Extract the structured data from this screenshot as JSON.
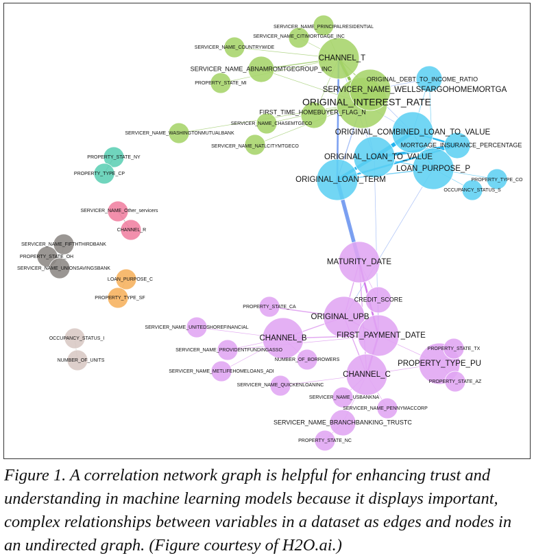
{
  "caption": "Figure 1. A correlation network graph is helpful for enhancing trust and understanding in machine learning models because it displays important, complex relationships between variables in a dataset as edges and nodes in an undirected graph. (Figure courtesy of H2O.ai.)",
  "colors": {
    "green": "#a6d46a",
    "green_edge": "#7fba3c",
    "blue": "#5fd0f3",
    "blue_edge": "#1fb2ee",
    "purple": "#e0a5f3",
    "purple_edge": "#cf6fe8",
    "teal": "#5ccfb4",
    "pink": "#f07fa1",
    "gray": "#8c8884",
    "orange": "#f6b05c",
    "tan": "#d8c8c4",
    "bridge": "#6f97f0"
  },
  "nodes": [
    {
      "id": "n1",
      "label": "SERVICER_NAME_PRINCIPALRESIDENTIAL",
      "group": "green",
      "size": 1
    },
    {
      "id": "n2",
      "label": "SERVICER_NAME_CITIMORTGAGE_INC",
      "group": "green",
      "size": 1
    },
    {
      "id": "n3",
      "label": "SERVICER_NAME_COUNTRYWIDE",
      "group": "green",
      "size": 1
    },
    {
      "id": "n4",
      "label": "CHANNEL_T",
      "group": "green",
      "size": 3
    },
    {
      "id": "n5",
      "label": "SERVICER_NAME_ABNAMROMTGEGROUP_INC",
      "group": "green",
      "size": 2
    },
    {
      "id": "n6",
      "label": "PROPERTY_STATE_MI",
      "group": "green",
      "size": 1
    },
    {
      "id": "n7",
      "label": "ORIGINAL_DEBT_TO_INCOME_RATIO",
      "group": "blue",
      "size": 2
    },
    {
      "id": "n8",
      "label": "SERVICER_NAME_WELLSFARGOHOMEMORTGA",
      "group": "green",
      "size": 3
    },
    {
      "id": "n9",
      "label": "ORIGINAL_INTEREST_RATE",
      "group": "green",
      "size": 4
    },
    {
      "id": "n10",
      "label": "FIRST_TIME_HOMEBUYER_FLAG_N",
      "group": "green",
      "size": 2
    },
    {
      "id": "n11",
      "label": "SERVICER_NAME_CHASEMTGECO",
      "group": "green",
      "size": 1
    },
    {
      "id": "n12",
      "label": "SERVICER_NAME_WASHINGTONMUTUALBANK",
      "group": "green",
      "size": 1
    },
    {
      "id": "n13",
      "label": "SERVICER_NAME_NATLCITYMTGECO",
      "group": "green",
      "size": 1
    },
    {
      "id": "n14",
      "label": "ORIGINAL_COMBINED_LOAN_TO_VALUE",
      "group": "blue",
      "size": 3
    },
    {
      "id": "n15",
      "label": "MORTGAGE_INSURANCE_PERCENTAGE",
      "group": "blue",
      "size": 2
    },
    {
      "id": "n16",
      "label": "ORIGINAL_LOAN_TO_VALUE",
      "group": "blue",
      "size": 3
    },
    {
      "id": "n17",
      "label": "LOAN_PURPOSE_P",
      "group": "blue",
      "size": 3
    },
    {
      "id": "n18",
      "label": "ORIGINAL_LOAN_TERM",
      "group": "blue",
      "size": 3
    },
    {
      "id": "n19",
      "label": "PROPERTY_TYPE_CO",
      "group": "blue",
      "size": 1
    },
    {
      "id": "n20",
      "label": "OCCUPANCY_STATUS_S",
      "group": "blue",
      "size": 1
    },
    {
      "id": "n21",
      "label": "PROPERTY_STATE_NY",
      "group": "teal",
      "size": 1
    },
    {
      "id": "n22",
      "label": "PROPERTY_TYPE_CP",
      "group": "teal",
      "size": 1
    },
    {
      "id": "n23",
      "label": "SERVICER_NAME_Other_servicers",
      "group": "pink",
      "size": 1
    },
    {
      "id": "n24",
      "label": "CHANNEL_R",
      "group": "pink",
      "size": 1
    },
    {
      "id": "n25",
      "label": "SERVICER_NAME_FIFTHTHIRDBANK",
      "group": "gray",
      "size": 1
    },
    {
      "id": "n26",
      "label": "PROPERTY_STATE_OH",
      "group": "gray",
      "size": 1
    },
    {
      "id": "n27",
      "label": "SERVICER_NAME_UNIONSAVINGSBANK",
      "group": "gray",
      "size": 1
    },
    {
      "id": "n28",
      "label": "LOAN_PURPOSE_C",
      "group": "orange",
      "size": 1
    },
    {
      "id": "n29",
      "label": "PROPERTY_TYPE_SF",
      "group": "orange",
      "size": 1
    },
    {
      "id": "n30",
      "label": "OCCUPANCY_STATUS_I",
      "group": "tan",
      "size": 1
    },
    {
      "id": "n31",
      "label": "NUMBER_OF_UNITS",
      "group": "tan",
      "size": 1
    },
    {
      "id": "n32",
      "label": "MATURITY_DATE",
      "group": "purple",
      "size": 3
    },
    {
      "id": "n33",
      "label": "CREDIT_SCORE",
      "group": "purple",
      "size": 2
    },
    {
      "id": "n34",
      "label": "PROPERTY_STATE_CA",
      "group": "purple",
      "size": 1
    },
    {
      "id": "n35",
      "label": "ORIGINAL_UPB",
      "group": "purple",
      "size": 3
    },
    {
      "id": "n36",
      "label": "SERVICER_NAME_UNITEDSHOREFINANCIAL",
      "group": "purple",
      "size": 1
    },
    {
      "id": "n37",
      "label": "FIRST_PAYMENT_DATE",
      "group": "purple",
      "size": 3
    },
    {
      "id": "n38",
      "label": "CHANNEL_B",
      "group": "purple",
      "size": 3
    },
    {
      "id": "n39",
      "label": "SERVICER_NAME_PROVIDENTFUNDINGASSO",
      "group": "purple",
      "size": 1
    },
    {
      "id": "n40",
      "label": "NUMBER_OF_BORROWERS",
      "group": "purple",
      "size": 1
    },
    {
      "id": "n41",
      "label": "PROPERTY_STATE_TX",
      "group": "purple",
      "size": 1
    },
    {
      "id": "n42",
      "label": "SERVICER_NAME_METLIFEHOMELOANS_ADI",
      "group": "purple",
      "size": 1
    },
    {
      "id": "n43",
      "label": "PROPERTY_TYPE_PU",
      "group": "purple",
      "size": 3
    },
    {
      "id": "n44",
      "label": "CHANNEL_C",
      "group": "purple",
      "size": 3
    },
    {
      "id": "n45",
      "label": "PROPERTY_STATE_AZ",
      "group": "purple",
      "size": 1
    },
    {
      "id": "n46",
      "label": "SERVICER_NAME_QUICKENLOANINC",
      "group": "purple",
      "size": 1
    },
    {
      "id": "n47",
      "label": "SERVICER_NAME_USBANKNA",
      "group": "purple",
      "size": 1
    },
    {
      "id": "n48",
      "label": "SERVICER_NAME_PENNYMACCORP",
      "group": "purple",
      "size": 1
    },
    {
      "id": "n49",
      "label": "SERVICER_NAME_BRANCHBANKING_TRUSTC",
      "group": "purple",
      "size": 2
    },
    {
      "id": "n50",
      "label": "PROPERTY_STATE_NC",
      "group": "purple",
      "size": 1
    }
  ],
  "edges": [
    {
      "s": "n4",
      "t": "n9",
      "w": 4
    },
    {
      "s": "n4",
      "t": "n8",
      "w": 2
    },
    {
      "s": "n4",
      "t": "n1",
      "w": 1
    },
    {
      "s": "n4",
      "t": "n2",
      "w": 1
    },
    {
      "s": "n4",
      "t": "n3",
      "w": 1
    },
    {
      "s": "n4",
      "t": "n5",
      "w": 2
    },
    {
      "s": "n4",
      "t": "n6",
      "w": 1
    },
    {
      "s": "n4",
      "t": "n10",
      "w": 1
    },
    {
      "s": "n4",
      "t": "n18",
      "w": 3
    },
    {
      "s": "n4",
      "t": "n16",
      "w": 1
    },
    {
      "s": "n9",
      "t": "n8",
      "w": 2
    },
    {
      "s": "n9",
      "t": "n10",
      "w": 2
    },
    {
      "s": "n9",
      "t": "n5",
      "w": 1
    },
    {
      "s": "n9",
      "t": "n11",
      "w": 1
    },
    {
      "s": "n9",
      "t": "n13",
      "w": 1
    },
    {
      "s": "n9",
      "t": "n12",
      "w": 1
    },
    {
      "s": "n9",
      "t": "n18",
      "w": 2
    },
    {
      "s": "n9",
      "t": "n14",
      "w": 1
    },
    {
      "s": "n9",
      "t": "n16",
      "w": 1
    },
    {
      "s": "n8",
      "t": "n7",
      "w": 1
    },
    {
      "s": "n8",
      "t": "n14",
      "w": 1
    },
    {
      "s": "n14",
      "t": "n16",
      "w": 5
    },
    {
      "s": "n14",
      "t": "n15",
      "w": 3
    },
    {
      "s": "n14",
      "t": "n18",
      "w": 4
    },
    {
      "s": "n14",
      "t": "n17",
      "w": 2
    },
    {
      "s": "n16",
      "t": "n15",
      "w": 4
    },
    {
      "s": "n16",
      "t": "n18",
      "w": 4
    },
    {
      "s": "n16",
      "t": "n17",
      "w": 2
    },
    {
      "s": "n18",
      "t": "n17",
      "w": 2
    },
    {
      "s": "n18",
      "t": "n15",
      "w": 3
    },
    {
      "s": "n7",
      "t": "n14",
      "w": 1
    },
    {
      "s": "n7",
      "t": "n17",
      "w": 1
    },
    {
      "s": "n17",
      "t": "n19",
      "w": 1
    },
    {
      "s": "n17",
      "t": "n20",
      "w": 1
    },
    {
      "s": "n18",
      "t": "n32",
      "w": 5
    },
    {
      "s": "n18",
      "t": "n37",
      "w": 1
    },
    {
      "s": "n16",
      "t": "n37",
      "w": 1
    },
    {
      "s": "n17",
      "t": "n35",
      "w": 1
    },
    {
      "s": "n21",
      "t": "n22",
      "w": 2
    },
    {
      "s": "n23",
      "t": "n24",
      "w": 2
    },
    {
      "s": "n25",
      "t": "n26",
      "w": 1
    },
    {
      "s": "n26",
      "t": "n27",
      "w": 1
    },
    {
      "s": "n25",
      "t": "n27",
      "w": 1
    },
    {
      "s": "n28",
      "t": "n29",
      "w": 1
    },
    {
      "s": "n30",
      "t": "n31",
      "w": 1
    },
    {
      "s": "n32",
      "t": "n37",
      "w": 3
    },
    {
      "s": "n32",
      "t": "n35",
      "w": 2
    },
    {
      "s": "n32",
      "t": "n44",
      "w": 2
    },
    {
      "s": "n32",
      "t": "n33",
      "w": 1
    },
    {
      "s": "n35",
      "t": "n37",
      "w": 2
    },
    {
      "s": "n35",
      "t": "n44",
      "w": 2
    },
    {
      "s": "n35",
      "t": "n38",
      "w": 2
    },
    {
      "s": "n37",
      "t": "n44",
      "w": 3
    },
    {
      "s": "n37",
      "t": "n38",
      "w": 2
    },
    {
      "s": "n37",
      "t": "n43",
      "w": 1
    },
    {
      "s": "n34",
      "t": "n35",
      "w": 2
    },
    {
      "s": "n38",
      "t": "n36",
      "w": 1
    },
    {
      "s": "n38",
      "t": "n39",
      "w": 1
    },
    {
      "s": "n38",
      "t": "n42",
      "w": 1
    },
    {
      "s": "n38",
      "t": "n40",
      "w": 1
    },
    {
      "s": "n44",
      "t": "n46",
      "w": 1
    },
    {
      "s": "n44",
      "t": "n47",
      "w": 1
    },
    {
      "s": "n44",
      "t": "n48",
      "w": 1
    },
    {
      "s": "n44",
      "t": "n49",
      "w": 1
    },
    {
      "s": "n44",
      "t": "n43",
      "w": 1
    },
    {
      "s": "n43",
      "t": "n41",
      "w": 1
    },
    {
      "s": "n43",
      "t": "n45",
      "w": 1
    },
    {
      "s": "n49",
      "t": "n50",
      "w": 1
    },
    {
      "s": "n33",
      "t": "n37",
      "w": 1
    },
    {
      "s": "n39",
      "t": "n37",
      "w": 1
    }
  ]
}
